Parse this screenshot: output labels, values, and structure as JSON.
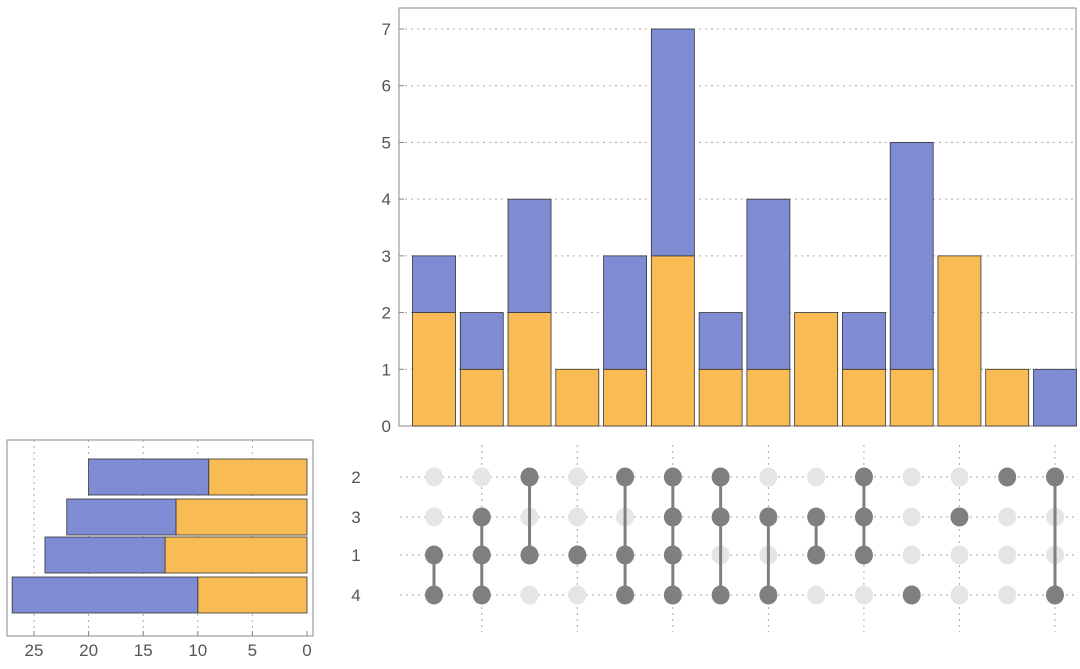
{
  "chart_data": [
    {
      "type": "bar",
      "name": "intersection-sizes",
      "stacked": true,
      "categories": [
        "{1,4}",
        "{1,3,4}",
        "{1,2}",
        "{1}",
        "{1,2,4}",
        "{1,2,3,4}",
        "{2,3,4}",
        "{3,4}",
        "{1,3}",
        "{1,2,3}",
        "{4}",
        "{3}",
        "{2}",
        "{2,4}"
      ],
      "series": [
        {
          "name": "orange",
          "color": "#F9BC54",
          "values": [
            2,
            1,
            2,
            1,
            1,
            3,
            1,
            1,
            2,
            1,
            1,
            3,
            1,
            0
          ]
        },
        {
          "name": "blue",
          "color": "#7F8CD4",
          "values": [
            1,
            1,
            2,
            0,
            2,
            4,
            1,
            3,
            0,
            1,
            4,
            0,
            0,
            1
          ]
        }
      ],
      "ylim": [
        0,
        7.4
      ],
      "yticks": [
        "0",
        "1",
        "2",
        "3",
        "4",
        "5",
        "6",
        "7"
      ],
      "grid": true
    },
    {
      "type": "bar",
      "name": "set-sizes",
      "orientation": "horizontal-reversed",
      "categories": [
        "2",
        "3",
        "1",
        "4"
      ],
      "series": [
        {
          "name": "orange",
          "color": "#F9BC54",
          "values": [
            9,
            12,
            13,
            10
          ]
        },
        {
          "name": "blue",
          "color": "#7F8CD4",
          "values": [
            11,
            10,
            11,
            17
          ]
        }
      ],
      "xlim": [
        0,
        28
      ],
      "xticks": [
        "25",
        "20",
        "15",
        "10",
        "5",
        "0"
      ],
      "grid": true
    },
    {
      "type": "matrix",
      "name": "membership-matrix",
      "rows": [
        "2",
        "3",
        "1",
        "4"
      ],
      "columns": [
        [
          "1",
          "4"
        ],
        [
          "3",
          "1",
          "4"
        ],
        [
          "2",
          "1"
        ],
        [
          "1"
        ],
        [
          "2",
          "1",
          "4"
        ],
        [
          "2",
          "3",
          "1",
          "4"
        ],
        [
          "2",
          "3",
          "4"
        ],
        [
          "3",
          "4"
        ],
        [
          "3",
          "1"
        ],
        [
          "2",
          "3",
          "1"
        ],
        [
          "4"
        ],
        [
          "3"
        ],
        [
          "2"
        ],
        [
          "2",
          "4"
        ]
      ],
      "active_color": "#7F7F7F",
      "inactive_color": "#E5E5E5"
    }
  ]
}
